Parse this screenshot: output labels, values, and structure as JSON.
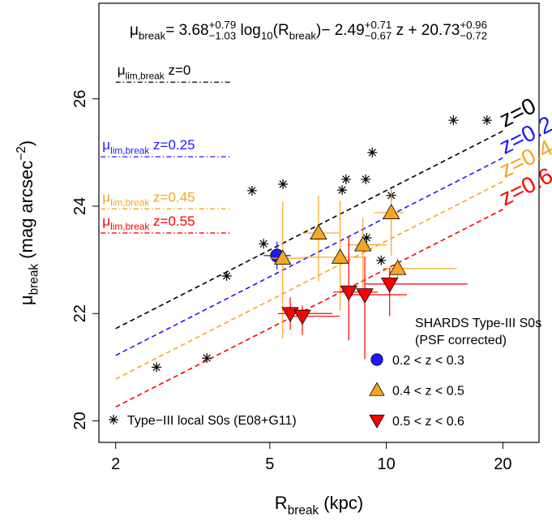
{
  "chart_data": {
    "type": "scatter",
    "x_log": true,
    "xlim": [
      1.81,
      24.8
    ],
    "ylim": [
      19.6,
      27.78
    ],
    "xticks": [
      2,
      5,
      10,
      20
    ],
    "yticks": [
      20,
      22,
      24,
      26
    ],
    "xlabel": [
      {
        "text": "R",
        "pos": "b"
      },
      {
        "text": "break",
        "pos": "sub"
      },
      {
        "text": " (kpc)",
        "pos": "b"
      }
    ],
    "ylabel": [
      {
        "text": "μ",
        "pos": "b"
      },
      {
        "text": "break",
        "pos": "sub"
      },
      {
        "text": " (mag arcsec",
        "pos": "b"
      },
      {
        "text": "−2",
        "pos": "sup"
      },
      {
        "text": ")",
        "pos": "b"
      }
    ],
    "formula": [
      {
        "text": "μ",
        "pos": "b"
      },
      {
        "text": "break",
        "pos": "sub"
      },
      {
        "text": "= 3.68",
        "pos": "b"
      },
      {
        "text": "+0.79",
        "pos": "sup"
      },
      {
        "text": "−1.03",
        "pos": "sub"
      },
      {
        "text": " log",
        "pos": "b"
      },
      {
        "text": "10",
        "pos": "sub"
      },
      {
        "text": "(R",
        "pos": "b"
      },
      {
        "text": "break",
        "pos": "sub"
      },
      {
        "text": ")− 2.49",
        "pos": "b"
      },
      {
        "text": "+0.71",
        "pos": "sup"
      },
      {
        "text": "−0.67",
        "pos": "sub"
      },
      {
        "text": " z + 20.73",
        "pos": "b"
      },
      {
        "text": "+0.96",
        "pos": "sup"
      },
      {
        "text": "−0.72",
        "pos": "sub"
      }
    ],
    "legend_title": [
      "SHARDS Type-III S0s",
      "(PSF corrected)"
    ],
    "series": [
      {
        "name": "Type−III local S0s (E08+G11)",
        "marker": "asterisk",
        "color": "#000000",
        "x": [
          2.55,
          3.44,
          3.87,
          4.82,
          4.5,
          5.41,
          7.69,
          7.87,
          8.85,
          9.2,
          10.3,
          8.9,
          9.7,
          14.9,
          18.2
        ],
        "y": [
          21.0,
          21.17,
          22.7,
          23.3,
          24.29,
          24.41,
          24.3,
          24.5,
          24.5,
          25.0,
          24.2,
          23.41,
          22.99,
          25.6,
          25.6
        ]
      },
      {
        "name": "0.2 < z < 0.3",
        "marker": "circle",
        "color": "#1a1aff",
        "x": [
          5.22
        ],
        "y": [
          23.08
        ],
        "xerr": [
          [
            0.4,
            0.45
          ]
        ],
        "yerr": [
          [
            0.26,
            0.26
          ]
        ]
      },
      {
        "name": "0.4 < z < 0.5",
        "marker": "triangle-up",
        "color": "#f5a623",
        "x": [
          5.4,
          6.68,
          7.6,
          8.7,
          10.3,
          10.7
        ],
        "y": [
          23.03,
          23.5,
          23.05,
          23.28,
          23.88,
          22.84
        ],
        "xerr": [
          [
            0.4,
            0.7
          ],
          [
            0.6,
            0.9
          ],
          [
            1.5,
            1.3
          ],
          [
            0.8,
            1.3
          ],
          [
            1.0,
            0.8
          ],
          [
            0.9,
            4.5
          ]
        ],
        "yerr": [
          [
            1.5,
            1.05
          ],
          [
            0.9,
            0.7
          ],
          [
            1.0,
            1.05
          ],
          [
            0.8,
            0.5
          ],
          [
            0.8,
            0.45
          ],
          [
            0.2,
            0.2
          ]
        ]
      },
      {
        "name": "0.5 < z < 0.6",
        "marker": "triangle-down",
        "color": "#ff0000",
        "x": [
          5.65,
          6.07,
          8.0,
          8.8,
          10.2
        ],
        "y": [
          22.0,
          21.95,
          22.4,
          22.35,
          22.55
        ],
        "xerr": [
          [
            0.4,
            1.6
          ],
          [
            0.5,
            1.5
          ],
          [
            0.7,
            1.5
          ],
          [
            0.9,
            2.5
          ],
          [
            1.4,
            6.0
          ]
        ],
        "yerr": [
          [
            0.3,
            0.3
          ],
          [
            0.35,
            0.2
          ],
          [
            0.9,
            1.05
          ],
          [
            1.2,
            0.7
          ],
          [
            0.6,
            0.3
          ]
        ]
      }
    ],
    "fits": [
      {
        "label": "z=0",
        "color": "#000000",
        "x": [
          2,
          20
        ],
        "y": [
          21.72,
          25.4
        ]
      },
      {
        "label": "z=0.2",
        "color": "#1a1aff",
        "x": [
          2,
          20
        ],
        "y": [
          21.22,
          24.9
        ]
      },
      {
        "label": "z=0.4",
        "color": "#f5a623",
        "x": [
          2,
          20
        ],
        "y": [
          20.78,
          24.46
        ]
      },
      {
        "label": "z=0.6",
        "color": "#ff0000",
        "x": [
          2,
          20
        ],
        "y": [
          20.26,
          23.94
        ]
      }
    ],
    "limits": [
      {
        "label": [
          {
            "text": "μ",
            "pos": "b"
          },
          {
            "text": "lim,break",
            "pos": "sub"
          },
          {
            "text": " z=0",
            "pos": "b"
          }
        ],
        "color": "#000000",
        "x": [
          2,
          3.98
        ],
        "y": 26.31
      },
      {
        "label": [
          {
            "text": "μ",
            "pos": "b"
          },
          {
            "text": "lim,break",
            "pos": "sub"
          },
          {
            "text": " z=0.25",
            "pos": "b"
          }
        ],
        "color": "#1a1aff",
        "x": [
          1.83,
          3.98
        ],
        "y": 24.92
      },
      {
        "label": [
          {
            "text": "μ",
            "pos": "b"
          },
          {
            "text": "lim,break",
            "pos": "sub"
          },
          {
            "text": " z=0.45",
            "pos": "b"
          }
        ],
        "color": "#f5a623",
        "x": [
          1.83,
          3.98
        ],
        "y": 23.95
      },
      {
        "label": [
          {
            "text": "μ",
            "pos": "b"
          },
          {
            "text": "lim,break",
            "pos": "sub"
          },
          {
            "text": " z=0.55",
            "pos": "b"
          }
        ],
        "color": "#ff0000",
        "x": [
          1.83,
          3.98
        ],
        "y": 23.5
      }
    ]
  }
}
